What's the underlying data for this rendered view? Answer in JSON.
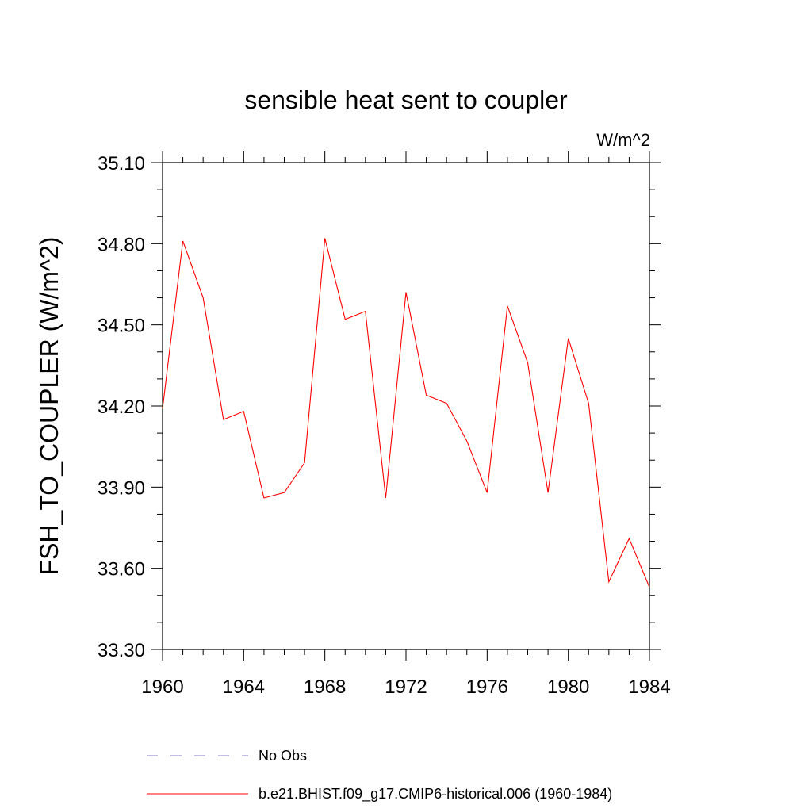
{
  "chart_data": {
    "type": "line",
    "title": "sensible heat sent to coupler",
    "units": "W/m^2",
    "ylabel": "FSH_TO_COUPLER  (W/m^2)",
    "xlabel": "",
    "xlim": [
      1960,
      1984
    ],
    "ylim": [
      33.3,
      35.1
    ],
    "xticks": [
      "1960",
      "1964",
      "1968",
      "1972",
      "1976",
      "1980",
      "1984"
    ],
    "yticks": [
      "33.30",
      "33.60",
      "33.90",
      "34.20",
      "34.50",
      "34.80",
      "35.10"
    ],
    "x": [
      1960,
      1961,
      1962,
      1963,
      1964,
      1965,
      1966,
      1967,
      1968,
      1969,
      1970,
      1971,
      1972,
      1973,
      1974,
      1975,
      1976,
      1977,
      1978,
      1979,
      1980,
      1981,
      1982,
      1983,
      1984
    ],
    "series": [
      {
        "name": "b.e21.BHIST.f09_g17.CMIP6-historical.006 (1960-1984)",
        "color": "#ff0000",
        "values": [
          34.19,
          34.81,
          34.6,
          34.15,
          34.18,
          33.86,
          33.88,
          33.99,
          34.82,
          34.52,
          34.55,
          33.86,
          34.62,
          34.24,
          34.21,
          34.07,
          33.88,
          34.57,
          34.36,
          33.88,
          34.45,
          34.21,
          33.55,
          33.71,
          33.53
        ]
      }
    ],
    "legend": {
      "placement": "bottom",
      "entries": [
        {
          "label": "No Obs",
          "color": "#8a7fbf",
          "style": "dashed"
        },
        {
          "label": "b.e21.BHIST.f09_g17.CMIP6-historical.006 (1960-1984)",
          "color": "#ff0000",
          "style": "solid"
        }
      ]
    },
    "grid": false
  }
}
